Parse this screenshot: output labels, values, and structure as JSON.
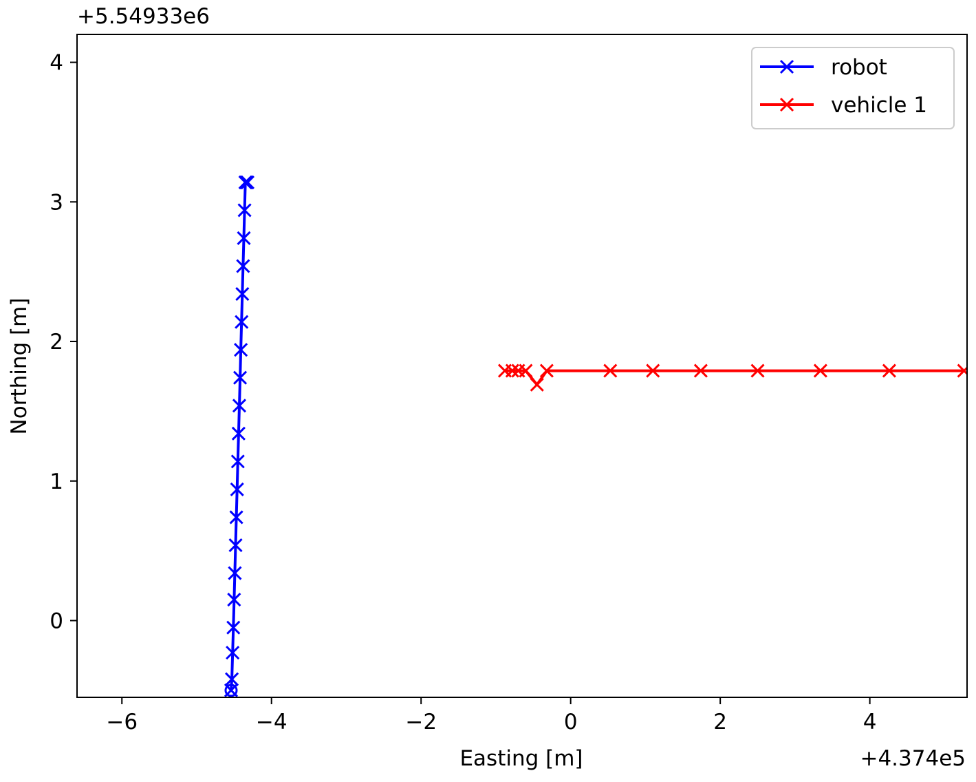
{
  "chart_data": {
    "type": "line",
    "title": "",
    "xlabel": "Easting [m]",
    "ylabel": "Northing [m]",
    "x_offset_label": "+4.374e5",
    "y_offset_label": "+5.54933e6",
    "xlim": [
      -6.6,
      5.3
    ],
    "ylim": [
      -0.55,
      4.2
    ],
    "xticks": [
      -6,
      -4,
      -2,
      0,
      2,
      4
    ],
    "xtick_labels": [
      "−6",
      "−4",
      "−2",
      "0",
      "2",
      "4"
    ],
    "yticks": [
      0,
      1,
      2,
      3,
      4
    ],
    "ytick_labels": [
      "0",
      "1",
      "2",
      "3",
      "4"
    ],
    "grid": false,
    "legend_position": "top-right",
    "series": [
      {
        "name": "robot",
        "color": "#0000ff",
        "marker": "x",
        "start_marker": "o",
        "x": [
          -4.54,
          -4.53,
          -4.52,
          -4.51,
          -4.5,
          -4.49,
          -4.48,
          -4.47,
          -4.46,
          -4.45,
          -4.44,
          -4.43,
          -4.42,
          -4.41,
          -4.4,
          -4.39,
          -4.38,
          -4.37,
          -4.36,
          -4.35,
          -4.34,
          -4.33,
          -4.32
        ],
        "y": [
          -0.5,
          -0.42,
          -0.23,
          -0.05,
          0.15,
          0.34,
          0.54,
          0.74,
          0.94,
          1.14,
          1.34,
          1.54,
          1.74,
          1.94,
          2.14,
          2.34,
          2.54,
          2.74,
          2.94,
          3.14,
          3.14,
          3.14,
          3.14
        ]
      },
      {
        "name": "vehicle 1",
        "color": "#ff0000",
        "marker": "x",
        "x": [
          -0.88,
          -0.78,
          -0.7,
          -0.6,
          -0.45,
          -0.32,
          0.53,
          1.1,
          1.74,
          2.5,
          3.34,
          4.26,
          5.26
        ],
        "y": [
          1.79,
          1.79,
          1.79,
          1.79,
          1.69,
          1.79,
          1.79,
          1.79,
          1.79,
          1.79,
          1.79,
          1.79,
          1.79
        ]
      }
    ]
  }
}
